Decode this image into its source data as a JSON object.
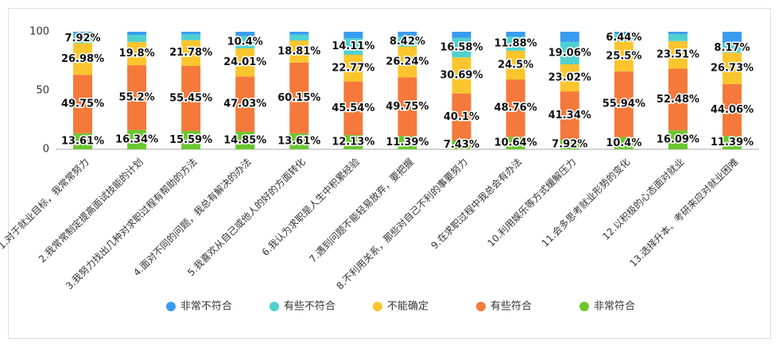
{
  "chart_data": {
    "type": "stacked_bar",
    "categories": [
      "1.对于就业目标，我常常努力",
      "2.我常常制定提高面试技能的计划",
      "3.我努力找出几种对求职过程有帮助的方法",
      "4.面对不同的问题，我总有解决的办法",
      "5.我喜欢从自己或他人的好的方面转化",
      "6.我认为求职是人生中积累经验",
      "7.遇到问题不能轻易放弃，要把握",
      "8.不利用关系，那些对自己不利的事要努力",
      "9.在求职过程中我总会有办法",
      "10.利用娱乐等方式缓解压力",
      "11.会多思考就业形势的变化",
      "12.以积极的心态面对就业",
      "13.选择升本、考研来应对就业困难"
    ],
    "series": [
      {
        "name": "非常符合",
        "color": "#6ac72f",
        "values": [
          13.61,
          16.34,
          15.59,
          14.85,
          13.61,
          12.13,
          11.39,
          7.43,
          10.64,
          7.92,
          10.4,
          16.09,
          11.39
        ],
        "value_labels": [
          "13.61%",
          "16.34%",
          "15.59%",
          "14.85%",
          "13.61%",
          "12.13%",
          "11.39%",
          "7.43%",
          "10.64%",
          "7.92%",
          "10.4%",
          "16.09%",
          "11.39%"
        ]
      },
      {
        "name": "有些符合",
        "color": "#f4793b",
        "values": [
          49.75,
          55.2,
          55.45,
          47.03,
          60.15,
          45.54,
          49.75,
          40.1,
          48.76,
          41.34,
          55.94,
          52.48,
          44.06
        ],
        "value_labels": [
          "49.75%",
          "55.2%",
          "55.45%",
          "47.03%",
          "60.15%",
          "45.54%",
          "49.75%",
          "40.1%",
          "48.76%",
          "41.34%",
          "55.94%",
          "52.48%",
          "44.06%"
        ]
      },
      {
        "name": "不能确定",
        "color": "#fbc62d",
        "values": [
          26.98,
          19.8,
          21.78,
          24.01,
          18.81,
          22.77,
          26.24,
          30.69,
          24.5,
          23.02,
          25.5,
          23.51,
          26.73
        ],
        "value_labels": [
          "26.98%",
          "19.8%",
          "21.78%",
          "24.01%",
          "18.81%",
          "22.77%",
          "26.24%",
          "30.69%",
          "24.5%",
          "23.02%",
          "25.5%",
          "23.51%",
          "26.73%"
        ]
      },
      {
        "name": "有些不符合",
        "color": "#4fd1cf",
        "values": [
          7.92,
          5.94,
          4.95,
          10.4,
          4.95,
          14.11,
          8.42,
          16.58,
          11.88,
          19.06,
          6.44,
          5.94,
          8.17
        ],
        "value_labels": [
          "7.92%",
          null,
          null,
          "10.4%",
          null,
          "14.11%",
          "8.42%",
          "16.58%",
          "11.88%",
          "19.06%",
          "6.44%",
          null,
          "8.17%"
        ]
      },
      {
        "name": "非常不符合",
        "color": "#3a9cf0",
        "values": [
          1.74,
          2.72,
          2.23,
          3.71,
          2.48,
          5.45,
          4.2,
          5.2,
          4.22,
          8.66,
          1.72,
          1.98,
          9.65
        ],
        "value_labels": [
          null,
          null,
          null,
          null,
          null,
          null,
          null,
          null,
          null,
          null,
          null,
          null,
          null
        ]
      }
    ],
    "ylim": [
      0,
      100
    ],
    "yticks": [
      0,
      50,
      100
    ]
  }
}
